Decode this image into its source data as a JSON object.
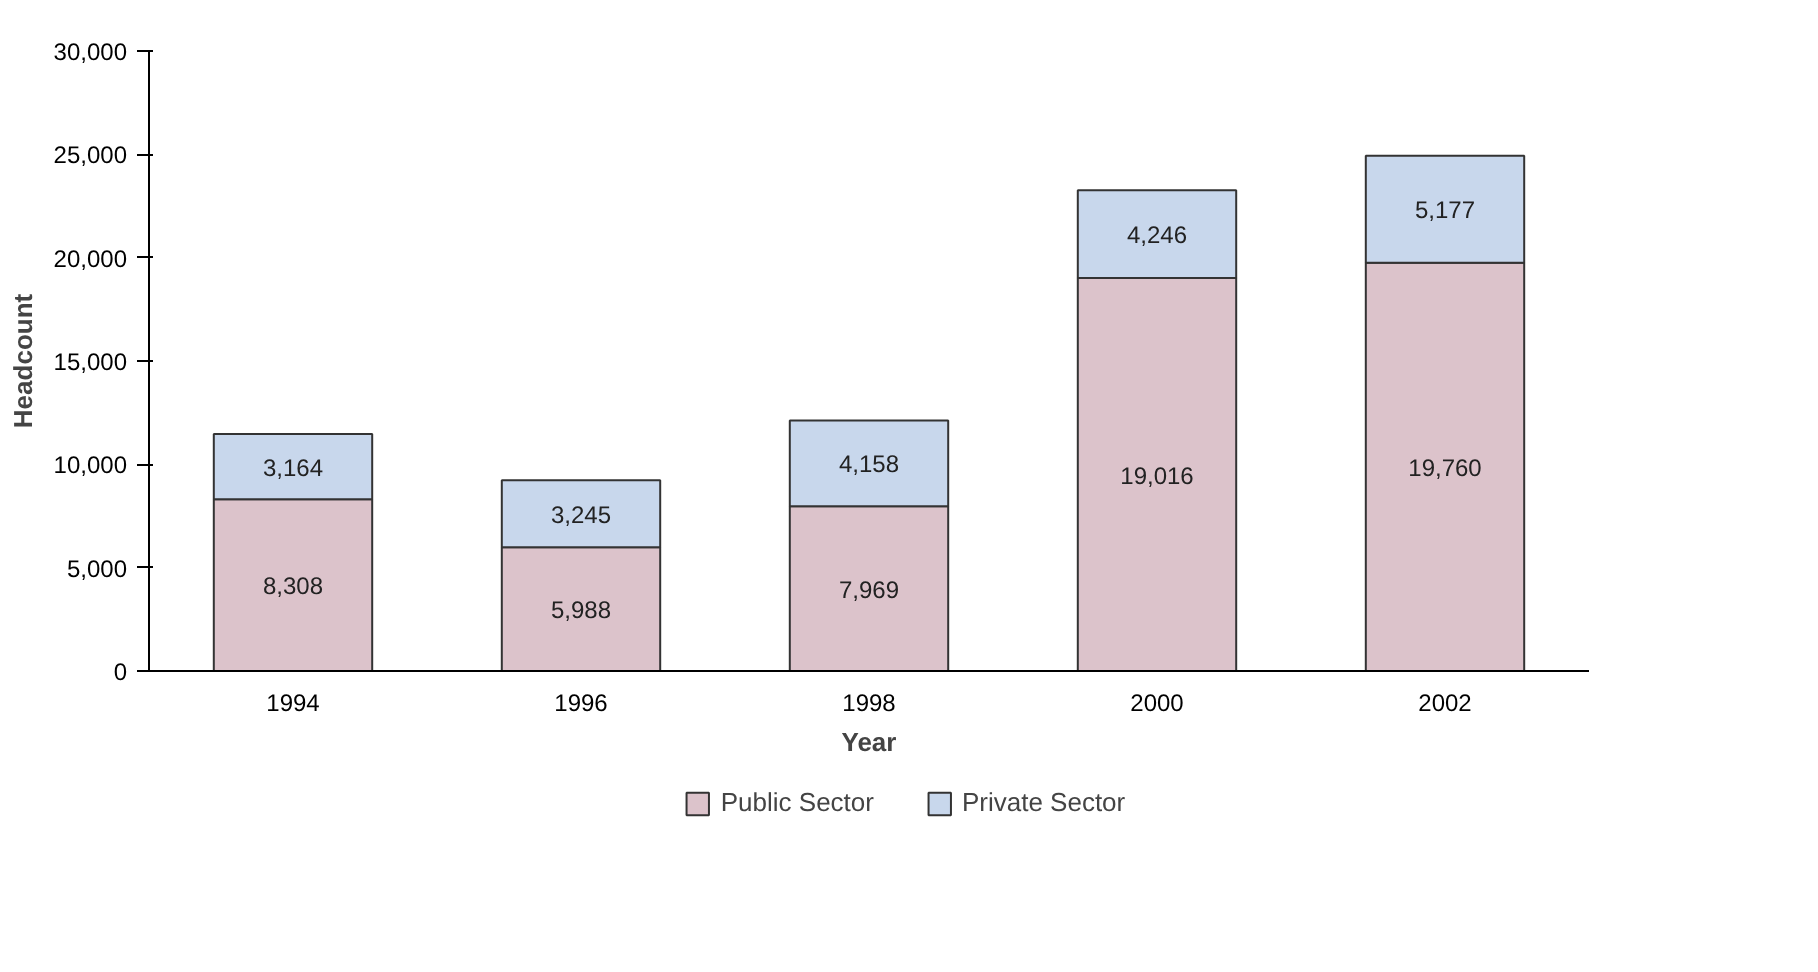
{
  "chart_data": {
    "type": "bar",
    "stacked": true,
    "xlabel": "Year",
    "ylabel": "Headcount",
    "categories": [
      "1994",
      "1996",
      "1998",
      "2000",
      "2002"
    ],
    "series": [
      {
        "name": "Public Sector",
        "color": "#dcc3cb",
        "values": [
          8308,
          5988,
          7969,
          19016,
          19760
        ],
        "value_labels": [
          "8,308",
          "5,988",
          "7,969",
          "19,016",
          "19,760"
        ]
      },
      {
        "name": "Private Sector",
        "color": "#c8d7ec",
        "values": [
          3164,
          3245,
          4158,
          4246,
          5177
        ],
        "value_labels": [
          "3,164",
          "3,245",
          "4,158",
          "4,246",
          "5,177"
        ]
      }
    ],
    "ylim": [
      0,
      30000
    ],
    "yticks": [
      {
        "value": 0,
        "label": "0"
      },
      {
        "value": 5000,
        "label": "5,000"
      },
      {
        "value": 10000,
        "label": "10,000"
      },
      {
        "value": 15000,
        "label": "15,000"
      },
      {
        "value": 20000,
        "label": "20,000"
      },
      {
        "value": 25000,
        "label": "25,000"
      },
      {
        "value": 30000,
        "label": "30,000"
      }
    ],
    "grid": false,
    "legend": "bottom"
  }
}
